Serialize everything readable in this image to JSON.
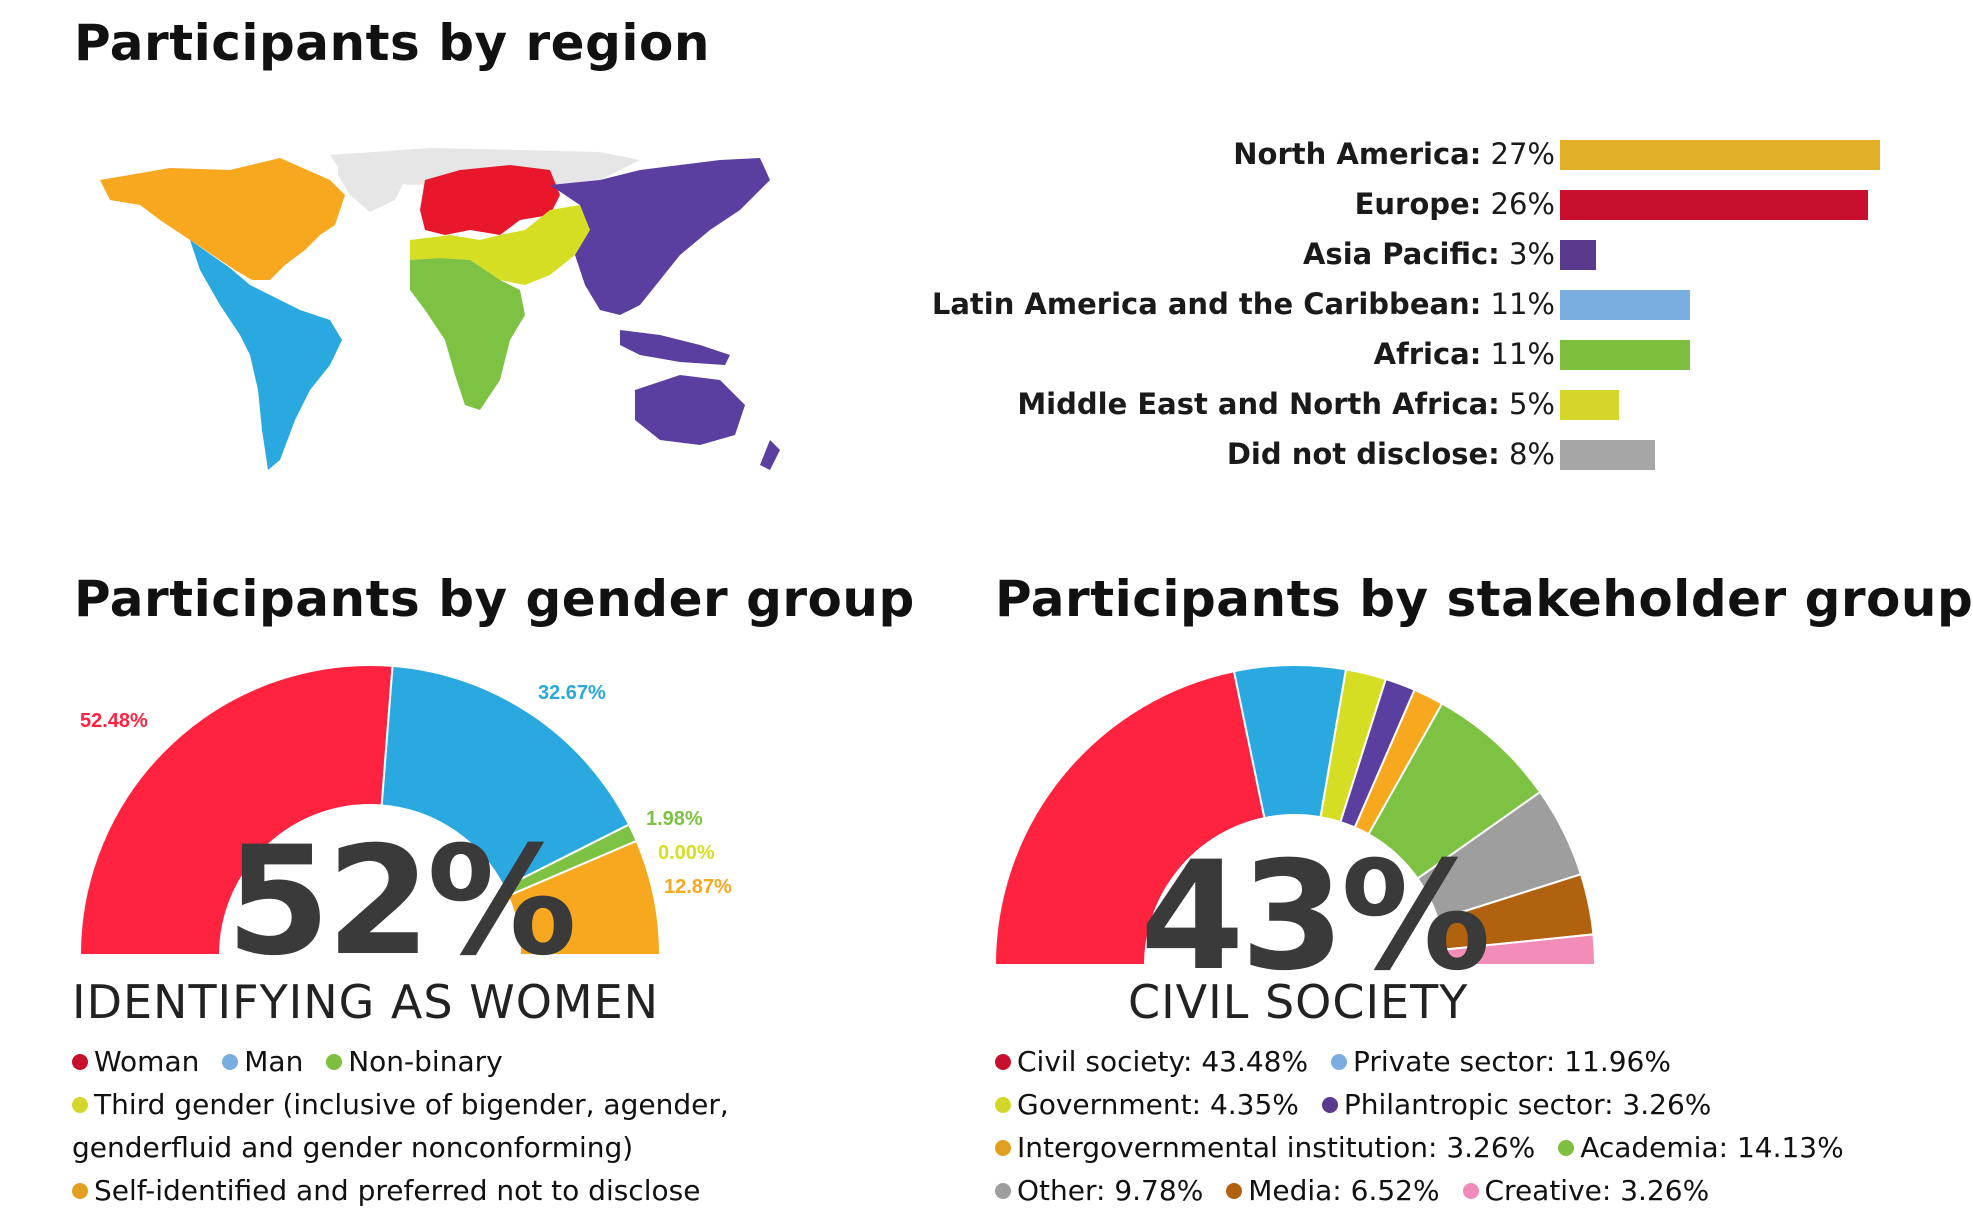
{
  "region": {
    "title": "Participants by region",
    "bars": [
      {
        "name": "North America",
        "pct_label": "27%",
        "value": 27,
        "color": "#E3B02A"
      },
      {
        "name": "Europe",
        "pct_label": "26%",
        "value": 26,
        "color": "#C8102E"
      },
      {
        "name": "Asia Pacific",
        "pct_label": "3%",
        "value": 3,
        "color": "#5A3A8C"
      },
      {
        "name": "Latin America and the Caribbean",
        "pct_label": "11%",
        "value": 11,
        "color": "#7AAEE0"
      },
      {
        "name": "Africa",
        "pct_label": "11%",
        "value": 11,
        "color": "#7FBF3F"
      },
      {
        "name": "Middle East and North Africa",
        "pct_label": "5%",
        "value": 5,
        "color": "#D4D72A"
      },
      {
        "name": "Did not disclose",
        "pct_label": "8%",
        "value": 8,
        "color": "#A6A6A6"
      }
    ]
  },
  "gender": {
    "title": "Participants by gender group",
    "big_pct": "52%",
    "subheading": "IDENTIFYING AS WOMEN",
    "slice_labels": [
      "52.48%",
      "32.67%",
      "1.98%",
      "0.00%",
      "12.87%"
    ],
    "legend": [
      {
        "label": "Woman",
        "color": "#C8102E"
      },
      {
        "label": "Man",
        "color": "#7AAEE0"
      },
      {
        "label": "Non-binary",
        "color": "#7FBF3F"
      },
      {
        "label": "Third gender (inclusive of bigender, agender, genderfluid and gender nonconforming)",
        "color": "#D4D72A"
      },
      {
        "label": "Self-identified and preferred not to disclose",
        "color": "#E3A020"
      }
    ]
  },
  "stakeholder": {
    "title": "Participants by stakeholder group",
    "big_pct": "43%",
    "subheading": "CIVIL SOCIETY",
    "legend": [
      {
        "label": "Civil society: 43.48%",
        "color": "#C8102E"
      },
      {
        "label": "Private sector: 11.96%",
        "color": "#7AAEE0"
      },
      {
        "label": "Government: 4.35%",
        "color": "#D4D72A"
      },
      {
        "label": "Philantropic sector: 3.26%",
        "color": "#5A3A8C"
      },
      {
        "label": "Intergovernmental institution: 3.26%",
        "color": "#E3A020"
      },
      {
        "label": "Academia: 14.13%",
        "color": "#7FBF3F"
      },
      {
        "label": "Other: 9.78%",
        "color": "#9E9E9E"
      },
      {
        "label": "Media: 6.52%",
        "color": "#B0620E"
      },
      {
        "label": "Creative: 3.26%",
        "color": "#F08BBB"
      }
    ]
  },
  "chart_data": [
    {
      "type": "bar",
      "title": "Participants by region",
      "categories": [
        "North America",
        "Europe",
        "Asia Pacific",
        "Latin America and the Caribbean",
        "Africa",
        "Middle East and North Africa",
        "Did not disclose"
      ],
      "values": [
        27,
        26,
        3,
        11,
        11,
        5,
        8
      ],
      "colors": [
        "#E3B02A",
        "#C8102E",
        "#5A3A8C",
        "#7AAEE0",
        "#7FBF3F",
        "#D4D72A",
        "#A6A6A6"
      ],
      "orientation": "horizontal"
    },
    {
      "type": "pie",
      "variant": "half-donut",
      "title": "Participants by gender group",
      "categories": [
        "Woman",
        "Man",
        "Non-binary",
        "Third gender (inclusive of bigender, agender, genderfluid and gender nonconforming)",
        "Self-identified and preferred not to disclose"
      ],
      "values": [
        52.48,
        32.67,
        1.98,
        0.0,
        12.87
      ],
      "colors": [
        "#FF2340",
        "#29A9E0",
        "#7DC242",
        "#D6DE23",
        "#F7A81E"
      ]
    },
    {
      "type": "pie",
      "variant": "half-donut",
      "title": "Participants by stakeholder group",
      "categories": [
        "Civil society",
        "Private sector",
        "Government",
        "Philantropic sector",
        "Intergovernmental institution",
        "Academia",
        "Other",
        "Media",
        "Creative"
      ],
      "values": [
        43.48,
        11.96,
        4.35,
        3.26,
        3.26,
        14.13,
        9.78,
        6.52,
        3.26
      ],
      "colors": [
        "#FF2340",
        "#29A9E0",
        "#D6DE23",
        "#5A3EA0",
        "#F7A81E",
        "#7DC242",
        "#9E9E9E",
        "#B0620E",
        "#F48CB8"
      ]
    }
  ]
}
